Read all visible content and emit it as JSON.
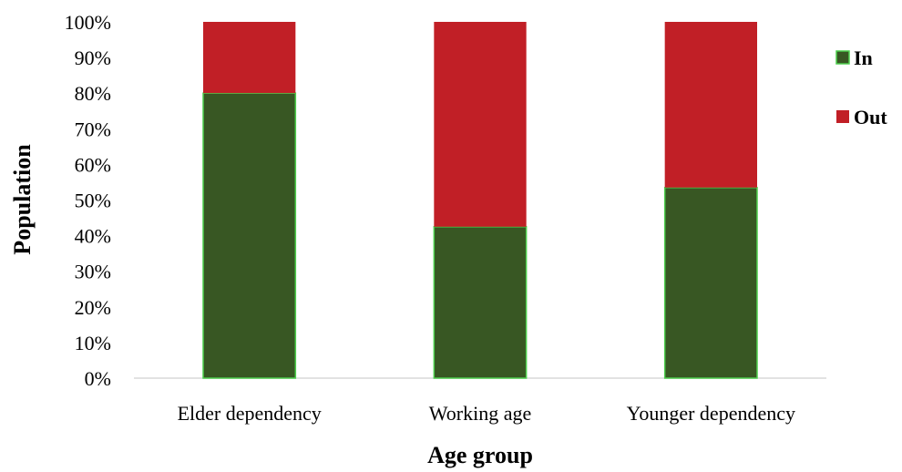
{
  "chart_data": {
    "type": "bar",
    "stacked": true,
    "categories": [
      "Elder dependency",
      "Working age",
      "Younger dependency"
    ],
    "series": [
      {
        "name": "In",
        "values": [
          80,
          42.5,
          53.5
        ],
        "color": "#385723",
        "edge_color": "#4ccf4c"
      },
      {
        "name": "Out",
        "values": [
          20,
          57.5,
          46.5
        ],
        "color": "#c11f26"
      }
    ],
    "title": "",
    "xlabel": "Age group",
    "ylabel": "Population",
    "ylim": [
      0,
      100
    ],
    "y_ticks": [
      "0%",
      "10%",
      "20%",
      "30%",
      "40%",
      "50%",
      "60%",
      "70%",
      "80%",
      "90%",
      "100%"
    ],
    "grid": false,
    "legend_position": "right"
  }
}
